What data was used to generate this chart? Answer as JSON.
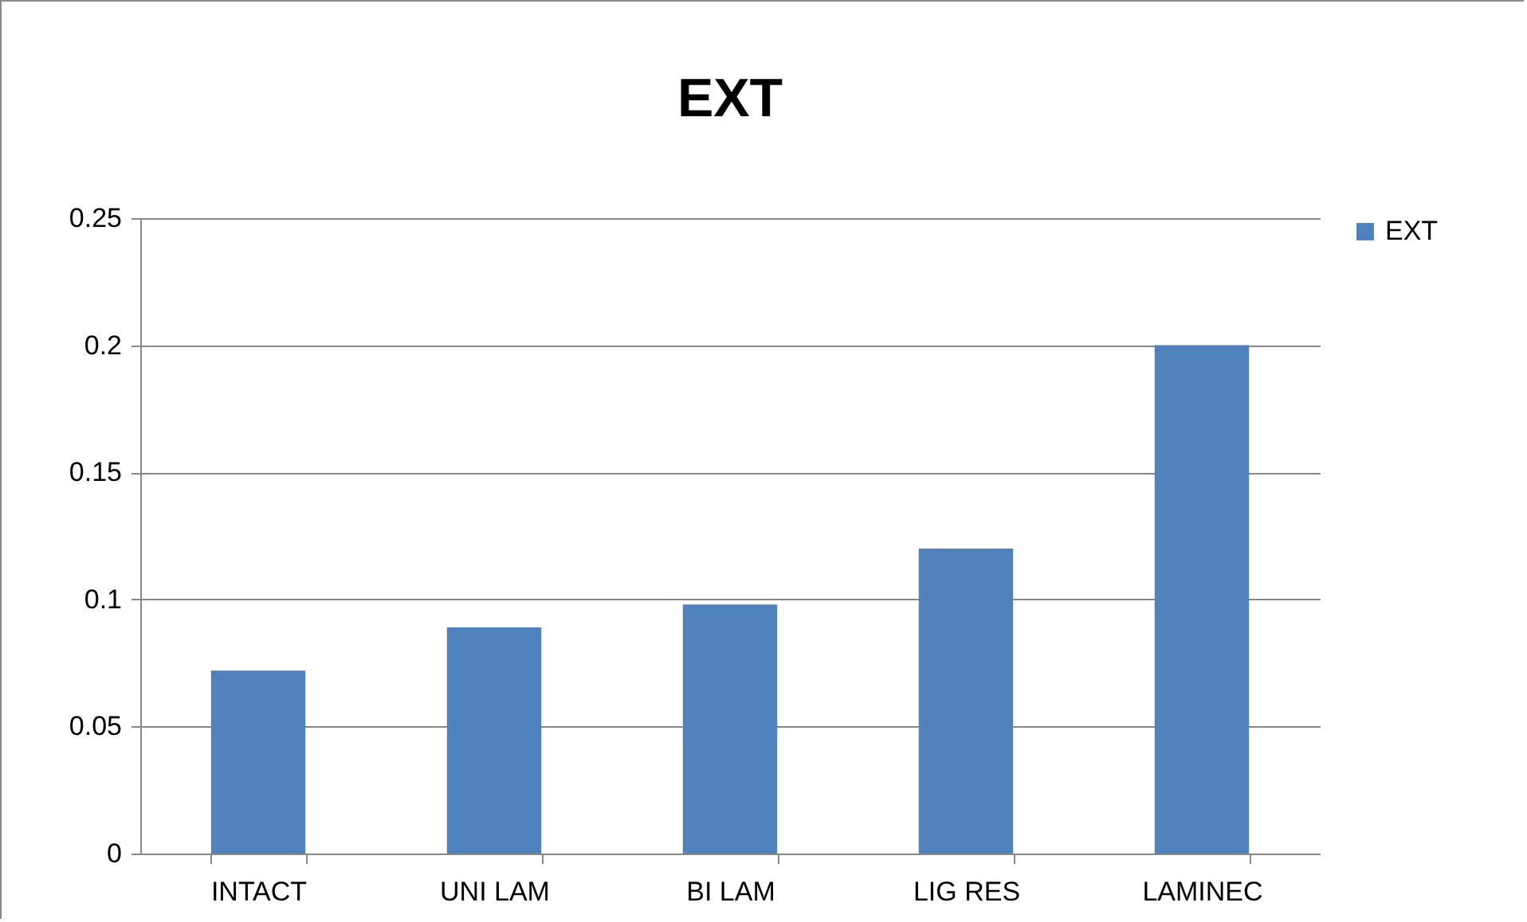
{
  "chart_data": {
    "type": "bar",
    "title": "EXT",
    "categories": [
      "INTACT",
      "UNI LAM",
      "BI LAM",
      "LIG RES",
      "LAMINEC"
    ],
    "series": [
      {
        "name": "EXT",
        "color": "#4f81bd",
        "values": [
          0.072,
          0.089,
          0.098,
          0.12,
          0.2
        ]
      }
    ],
    "ylim": [
      0,
      0.25
    ],
    "yticks": [
      0,
      0.05,
      0.1,
      0.15,
      0.2,
      0.25
    ],
    "grid": "y",
    "legend": "right"
  }
}
